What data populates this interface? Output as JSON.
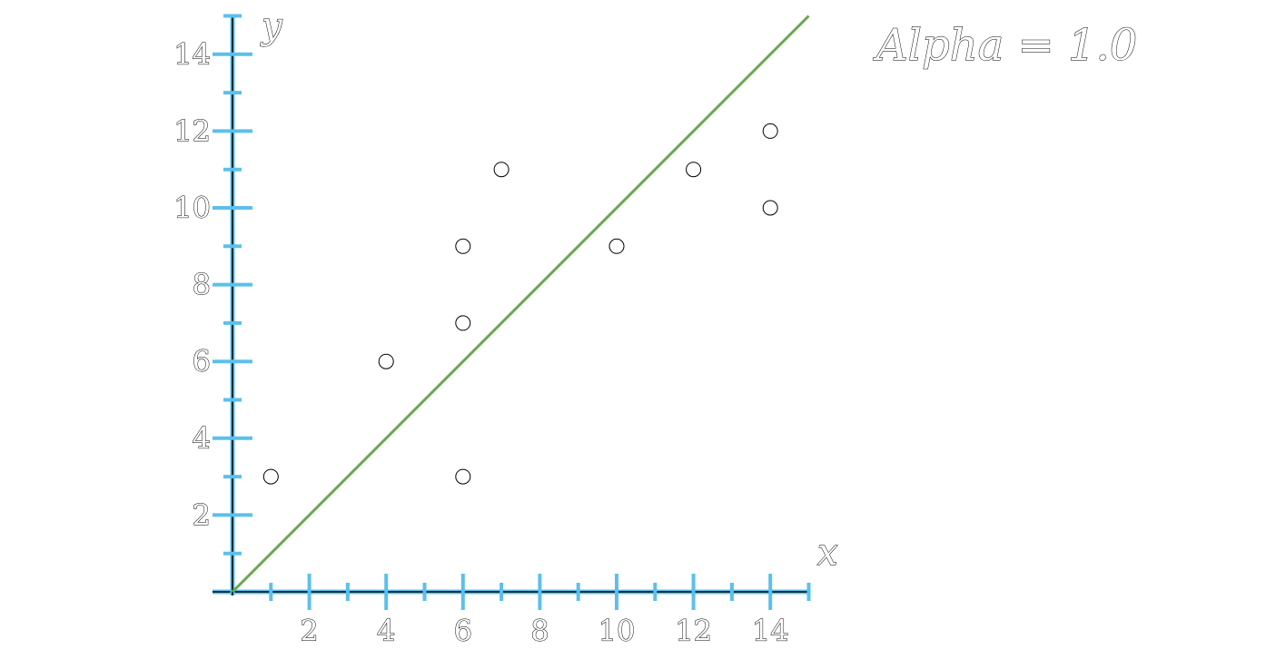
{
  "chart_data": {
    "type": "scatter",
    "xlabel": "x",
    "ylabel": "y",
    "xlim": [
      0,
      15
    ],
    "ylim": [
      0,
      15
    ],
    "x_ticks_labeled": [
      2,
      4,
      6,
      8,
      10,
      12,
      14
    ],
    "x_ticks_minor": [
      1,
      3,
      5,
      7,
      9,
      11,
      13,
      15
    ],
    "y_ticks_labeled": [
      2,
      4,
      6,
      8,
      10,
      12,
      14
    ],
    "y_ticks_minor": [
      1,
      3,
      5,
      7,
      9,
      11,
      13,
      15
    ],
    "grid": false,
    "annotation": "Alpha = 1.0",
    "series": [
      {
        "type": "scatter",
        "marker": "open-circle",
        "points": [
          [
            1,
            3
          ],
          [
            4,
            6
          ],
          [
            6,
            3
          ],
          [
            6,
            7
          ],
          [
            6,
            9
          ],
          [
            7,
            11
          ],
          [
            10,
            9
          ],
          [
            12,
            11
          ],
          [
            14,
            12
          ],
          [
            14,
            10
          ]
        ]
      },
      {
        "type": "line",
        "line": [
          [
            0,
            0
          ],
          [
            15,
            15
          ]
        ]
      }
    ],
    "colors": {
      "axis": "#5bc0eb",
      "line": "#6aa84f"
    }
  }
}
